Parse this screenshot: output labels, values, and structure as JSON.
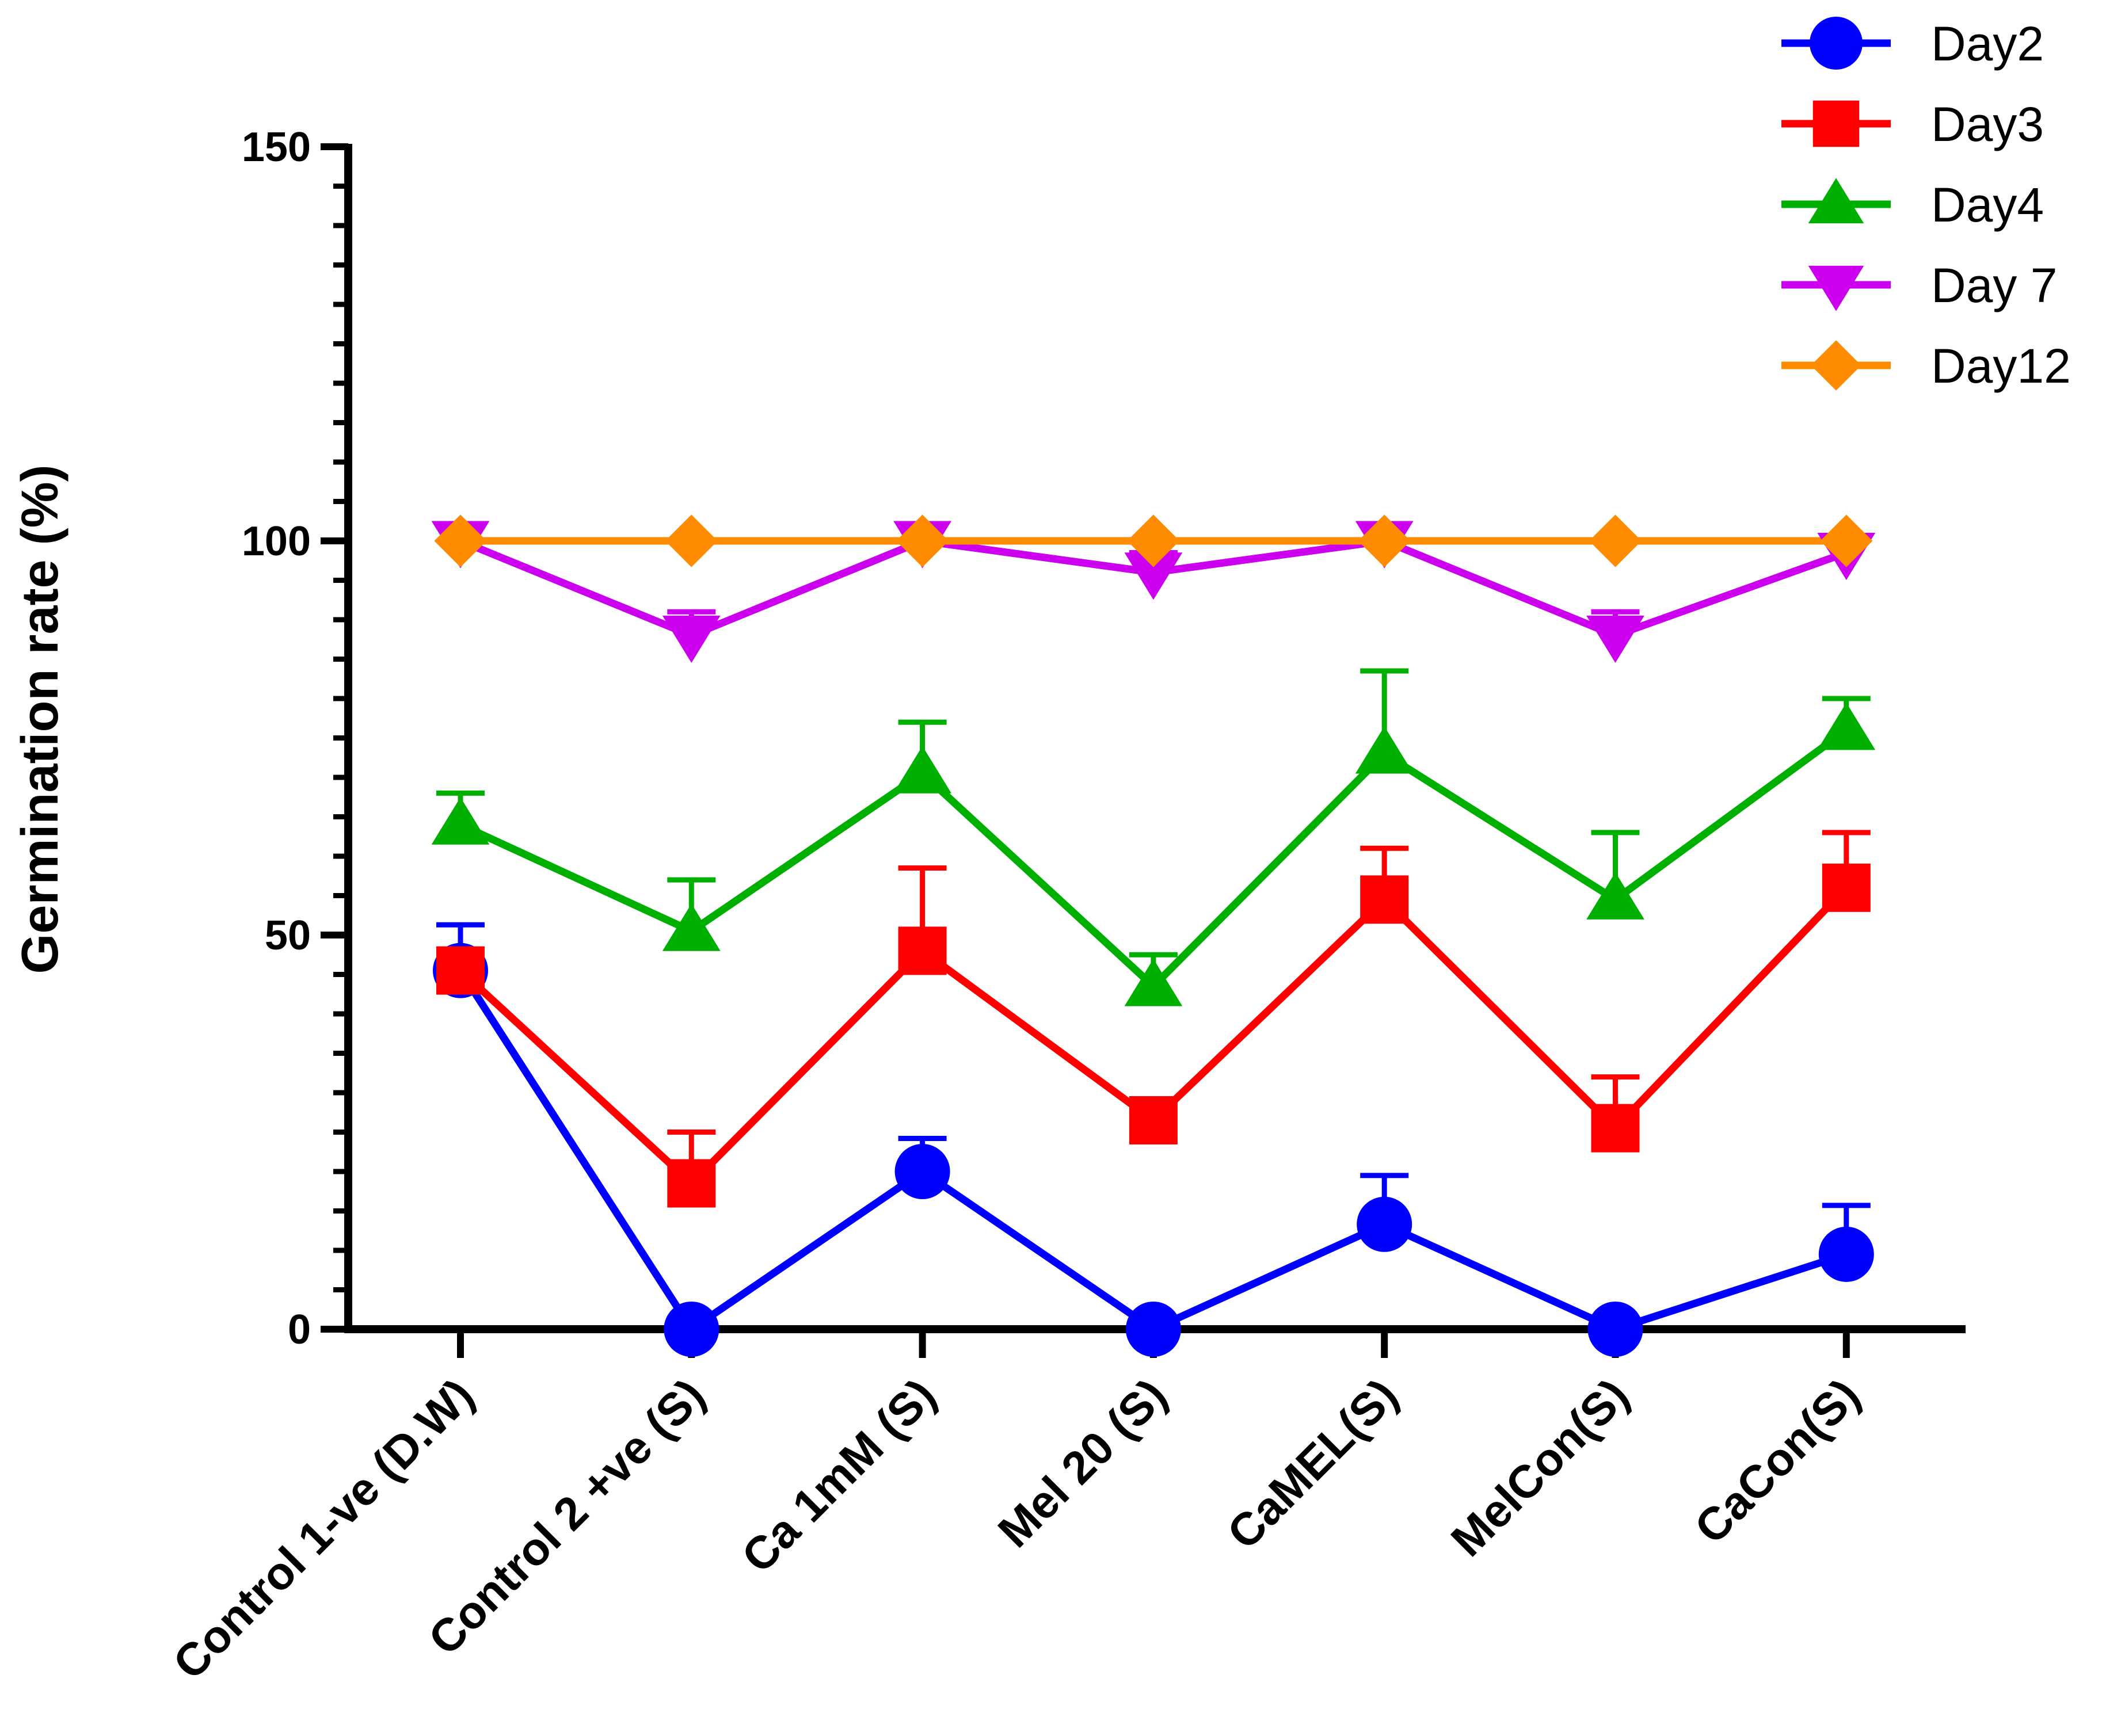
{
  "chart_data": {
    "type": "line",
    "title": "",
    "xlabel": "",
    "ylabel": "Germination rate (%)",
    "ylim": [
      0,
      150
    ],
    "yticks": [
      0,
      50,
      100,
      150
    ],
    "categories": [
      "Control 1-ve (D.W)",
      "Control 2 +ve (S)",
      "Ca 1mM (S)",
      "Mel 20 (S)",
      "CaMEL(S)",
      "MelCon(S)",
      "CaCon(S)"
    ],
    "legend_position": "top-right",
    "series": [
      {
        "name": "Day2",
        "marker": "circle",
        "color": "#0000ff",
        "values": [
          45.5,
          0,
          20,
          0,
          13.3,
          0,
          9.5
        ],
        "errors": [
          5.8,
          0,
          4.2,
          0,
          6.2,
          0,
          6.2
        ]
      },
      {
        "name": "Day3",
        "marker": "square",
        "color": "#ff0000",
        "values": [
          45.5,
          18.5,
          48,
          26.5,
          54.5,
          25.5,
          56
        ],
        "errors": [
          0,
          6.5,
          10.5,
          0,
          6.5,
          6.5,
          7
        ]
      },
      {
        "name": "Day4",
        "marker": "triangle-up",
        "color": "#00b000",
        "values": [
          64,
          50.5,
          70.5,
          43.5,
          73,
          54.5,
          76
        ],
        "errors": [
          4,
          6.5,
          6.5,
          4,
          10.5,
          8.5,
          4
        ]
      },
      {
        "name": "Day 7",
        "marker": "triangle-down",
        "color": "#cc00ee",
        "values": [
          100,
          88,
          100,
          96,
          100,
          88,
          98.5
        ],
        "errors": [
          0,
          3,
          0,
          2.5,
          0,
          3,
          0
        ]
      },
      {
        "name": "Day12",
        "marker": "diamond",
        "color": "#ff8c00",
        "values": [
          100,
          100,
          100,
          100,
          100,
          100,
          100
        ],
        "errors": [
          0,
          0,
          0,
          0,
          0,
          0,
          0
        ]
      }
    ]
  }
}
